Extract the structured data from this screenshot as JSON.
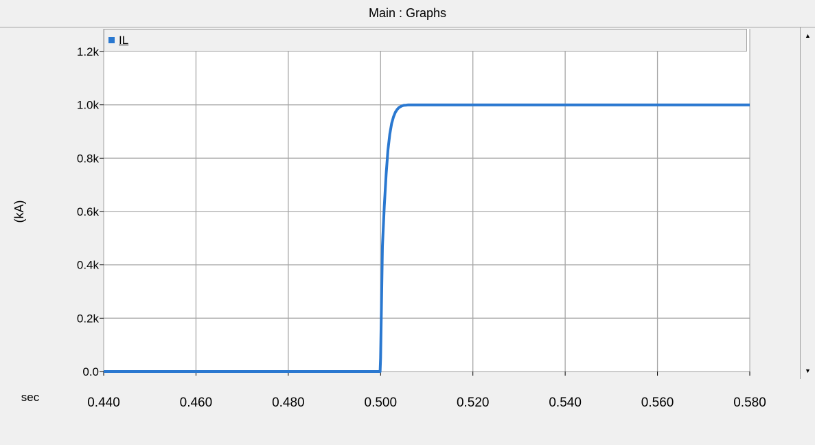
{
  "window": {
    "title": "Main : Graphs"
  },
  "legend": {
    "items": [
      {
        "label": "IL",
        "color": "#2a78d0"
      }
    ]
  },
  "chart_data": {
    "type": "line",
    "title": "",
    "xlabel": "sec",
    "ylabel": "(kA)",
    "xlim": [
      0.44,
      0.58
    ],
    "ylim": [
      0.0,
      1.2
    ],
    "x_ticks": [
      0.44,
      0.46,
      0.48,
      0.5,
      0.52,
      0.54,
      0.56,
      0.58
    ],
    "x_tick_labels": [
      "0.440",
      "0.460",
      "0.480",
      "0.500",
      "0.520",
      "0.540",
      "0.560",
      "0.580"
    ],
    "y_ticks": [
      0.0,
      0.2,
      0.4,
      0.6,
      0.8,
      1.0,
      1.2
    ],
    "y_tick_labels": [
      "0.0",
      "0.2k",
      "0.4k",
      "0.6k",
      "0.8k",
      "1.0k",
      "1.2k"
    ],
    "grid": true,
    "legend_position": "top-left",
    "series": [
      {
        "name": "IL",
        "color": "#2a78d0",
        "x": [
          0.44,
          0.4999,
          0.5,
          0.5004,
          0.5008,
          0.5012,
          0.5016,
          0.502,
          0.5024,
          0.5028,
          0.5032,
          0.5036,
          0.504,
          0.5045,
          0.505,
          0.5055,
          0.506,
          0.58
        ],
        "y": [
          0.0,
          0.0,
          0.05,
          0.47,
          0.62,
          0.74,
          0.83,
          0.89,
          0.93,
          0.955,
          0.972,
          0.983,
          0.99,
          0.995,
          0.998,
          0.999,
          1.0,
          1.0
        ]
      }
    ]
  }
}
